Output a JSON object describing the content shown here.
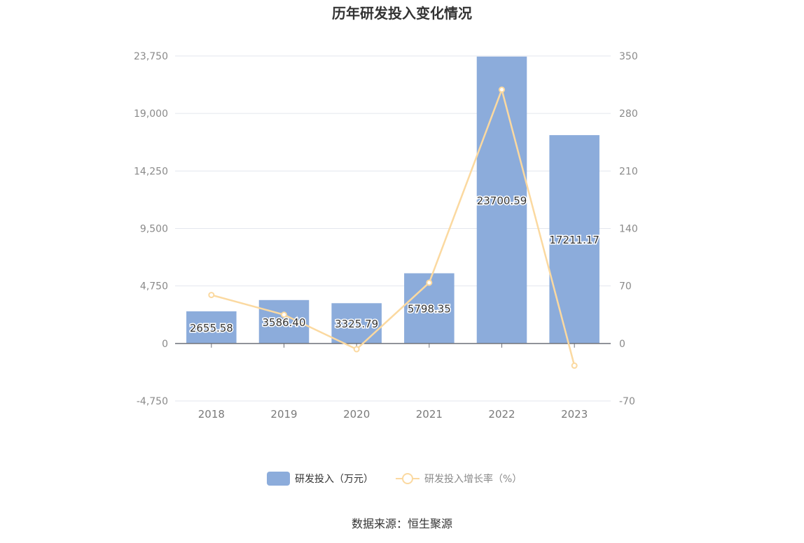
{
  "chart_data": {
    "type": "bar",
    "title": "历年研发投入变化情况",
    "categories": [
      "2018",
      "2019",
      "2020",
      "2021",
      "2022",
      "2023"
    ],
    "series": [
      {
        "name": "研发投入（万元）",
        "type": "bar",
        "axis": "left",
        "color": "#8cacdb",
        "values": [
          2655.58,
          3586.4,
          3325.79,
          5798.35,
          23700.59,
          17211.17
        ],
        "labels": [
          "2655.58",
          "3586.40",
          "3325.79",
          "5798.35",
          "23700.59",
          "17211.17"
        ]
      },
      {
        "name": "研发投入增长率（%）",
        "type": "line",
        "axis": "right",
        "color": "#fbd9a0",
        "values": [
          59,
          35,
          -7,
          74,
          309,
          -27
        ]
      }
    ],
    "y_left": {
      "min": -4750,
      "max": 23750,
      "ticks": [
        "-4,750",
        "0",
        "4,750",
        "9,500",
        "14,250",
        "19,000",
        "23,750"
      ],
      "tick_values": [
        -4750,
        0,
        4750,
        9500,
        14250,
        19000,
        23750
      ]
    },
    "y_right": {
      "min": -70,
      "max": 350,
      "ticks": [
        "-70",
        "0",
        "70",
        "140",
        "210",
        "280",
        "350"
      ],
      "tick_values": [
        -70,
        0,
        70,
        140,
        210,
        280,
        350
      ]
    },
    "grid": true,
    "legend_position": "bottom"
  },
  "footer": {
    "source": "数据来源：恒生聚源"
  }
}
